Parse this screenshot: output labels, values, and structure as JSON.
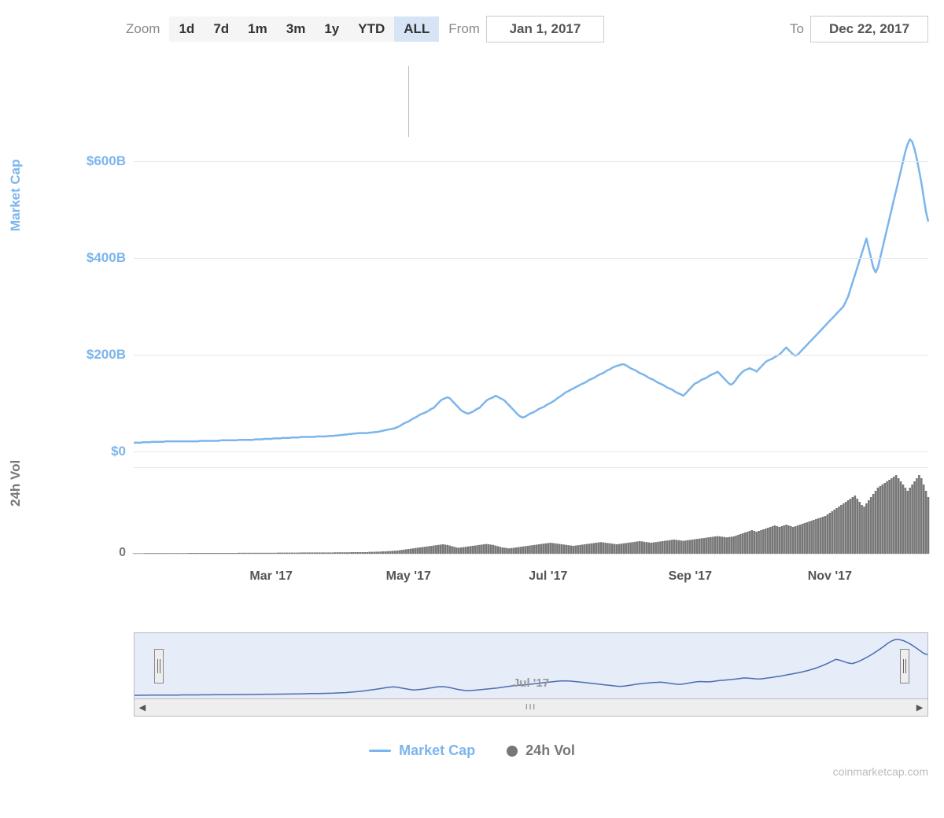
{
  "toolbar": {
    "zoom_label": "Zoom",
    "buttons": [
      "1d",
      "7d",
      "1m",
      "3m",
      "1y",
      "YTD",
      "ALL"
    ],
    "selected_index": 6,
    "from_label": "From",
    "to_label": "To",
    "from_date": "Jan 1, 2017",
    "to_date": "Dec 22, 2017"
  },
  "chart": {
    "type": "line+bar",
    "colors": {
      "market_cap_line": "#7cb5ec",
      "volume_bar": "#777777",
      "gridline": "#e6e6e6",
      "background": "#ffffff",
      "navigator_bg": "#e6ecf8",
      "navigator_line": "#4a6db0"
    },
    "y_axis_mc": {
      "title": "Market Cap",
      "title_color": "#7cb5ec",
      "ticks": [
        0,
        200,
        400,
        600
      ],
      "tick_labels": [
        "$0",
        "$200B",
        "$400B",
        "$600B"
      ],
      "ylim": [
        0,
        650
      ],
      "fontsize": 17
    },
    "y_axis_vol": {
      "title": "24h Vol",
      "title_color": "#777777",
      "ticks": [
        0
      ],
      "tick_labels": [
        "0"
      ],
      "ylim": [
        0,
        55
      ],
      "fontsize": 16
    },
    "x_axis": {
      "ticks": [
        60,
        120,
        181,
        243,
        304
      ],
      "tick_labels": [
        "Mar '17",
        "May '17",
        "Jul '17",
        "Sep '17",
        "Nov '17"
      ],
      "fontsize": 16
    },
    "crosshair_x": 120,
    "market_cap_series": [
      18,
      18,
      18,
      18,
      19,
      19,
      19,
      19,
      20,
      20,
      20,
      20,
      20,
      20,
      21,
      21,
      21,
      21,
      21,
      21,
      21,
      21,
      21,
      21,
      21,
      21,
      21,
      21,
      21,
      22,
      22,
      22,
      22,
      22,
      22,
      22,
      22,
      22,
      23,
      23,
      23,
      23,
      23,
      23,
      23,
      23,
      24,
      24,
      24,
      24,
      24,
      24,
      24,
      25,
      25,
      25,
      25,
      26,
      26,
      26,
      26,
      27,
      27,
      27,
      27,
      28,
      28,
      28,
      28,
      29,
      29,
      29,
      29,
      30,
      30,
      30,
      30,
      30,
      30,
      30,
      31,
      31,
      31,
      31,
      31,
      32,
      32,
      32,
      33,
      33,
      34,
      34,
      35,
      35,
      36,
      36,
      37,
      37,
      38,
      38,
      38,
      38,
      38,
      39,
      39,
      40,
      40,
      41,
      42,
      43,
      44,
      45,
      46,
      47,
      48,
      50,
      52,
      55,
      58,
      60,
      62,
      65,
      68,
      70,
      73,
      76,
      78,
      80,
      82,
      85,
      88,
      90,
      95,
      100,
      105,
      108,
      110,
      112,
      110,
      105,
      100,
      95,
      90,
      85,
      82,
      80,
      78,
      80,
      82,
      85,
      88,
      90,
      95,
      100,
      105,
      108,
      110,
      112,
      115,
      113,
      110,
      108,
      105,
      100,
      95,
      90,
      85,
      80,
      75,
      72,
      70,
      72,
      75,
      78,
      80,
      82,
      85,
      88,
      90,
      92,
      95,
      98,
      100,
      103,
      106,
      110,
      113,
      116,
      120,
      123,
      125,
      128,
      130,
      133,
      135,
      138,
      140,
      142,
      145,
      148,
      150,
      152,
      155,
      158,
      160,
      162,
      165,
      168,
      170,
      173,
      175,
      177,
      178,
      180,
      180,
      178,
      175,
      172,
      170,
      168,
      165,
      162,
      160,
      158,
      155,
      152,
      150,
      148,
      145,
      142,
      140,
      138,
      135,
      132,
      130,
      128,
      125,
      122,
      120,
      118,
      115,
      120,
      125,
      130,
      135,
      140,
      142,
      145,
      148,
      150,
      152,
      155,
      158,
      160,
      162,
      165,
      160,
      155,
      150,
      145,
      140,
      138,
      142,
      148,
      155,
      160,
      165,
      168,
      170,
      172,
      170,
      168,
      165,
      170,
      175,
      180,
      185,
      188,
      190,
      192,
      195,
      198,
      200,
      205,
      210,
      215,
      210,
      205,
      200,
      198,
      200,
      205,
      210,
      215,
      220,
      225,
      230,
      235,
      240,
      245,
      250,
      255,
      260,
      265,
      270,
      275,
      280,
      285,
      290,
      295,
      300,
      310,
      320,
      335,
      350,
      365,
      380,
      395,
      410,
      425,
      440,
      420,
      400,
      380,
      370,
      380,
      400,
      420,
      440,
      460,
      480,
      500,
      520,
      540,
      560,
      580,
      600,
      620,
      635,
      645,
      640,
      625,
      605,
      580,
      555,
      525,
      495,
      475
    ],
    "volume_series": [
      0.3,
      0.3,
      0.3,
      0.3,
      0.3,
      0.4,
      0.4,
      0.4,
      0.4,
      0.4,
      0.4,
      0.4,
      0.4,
      0.4,
      0.4,
      0.4,
      0.4,
      0.4,
      0.4,
      0.4,
      0.4,
      0.4,
      0.4,
      0.4,
      0.5,
      0.5,
      0.5,
      0.5,
      0.5,
      0.5,
      0.5,
      0.5,
      0.5,
      0.5,
      0.5,
      0.5,
      0.5,
      0.5,
      0.5,
      0.5,
      0.5,
      0.5,
      0.5,
      0.5,
      0.5,
      0.5,
      0.6,
      0.6,
      0.6,
      0.6,
      0.6,
      0.6,
      0.6,
      0.6,
      0.6,
      0.6,
      0.6,
      0.6,
      0.6,
      0.6,
      0.6,
      0.6,
      0.6,
      0.7,
      0.7,
      0.7,
      0.7,
      0.7,
      0.7,
      0.7,
      0.7,
      0.7,
      0.7,
      0.8,
      0.8,
      0.8,
      0.8,
      0.8,
      0.8,
      0.8,
      0.8,
      0.8,
      0.8,
      0.8,
      0.8,
      0.8,
      0.8,
      0.8,
      0.9,
      0.9,
      0.9,
      0.9,
      0.9,
      0.9,
      0.9,
      1,
      1,
      1,
      1,
      1,
      1,
      1,
      1,
      1.2,
      1.2,
      1.2,
      1.3,
      1.3,
      1.4,
      1.5,
      1.5,
      1.6,
      1.7,
      1.8,
      1.9,
      2,
      2.2,
      2.4,
      2.6,
      2.8,
      3,
      3.2,
      3.4,
      3.6,
      3.8,
      4,
      4.2,
      4.4,
      4.6,
      4.8,
      5,
      5.2,
      5.4,
      5.6,
      5.8,
      6,
      5.8,
      5.6,
      5.2,
      4.8,
      4.4,
      4,
      3.8,
      4,
      4.2,
      4.4,
      4.6,
      4.8,
      5,
      5.2,
      5.4,
      5.6,
      5.8,
      6,
      6.2,
      6,
      5.8,
      5.6,
      5.2,
      4.8,
      4.4,
      4,
      3.8,
      3.6,
      3.4,
      3.6,
      3.8,
      4,
      4.2,
      4.4,
      4.6,
      4.8,
      5,
      5.2,
      5.4,
      5.6,
      5.8,
      6,
      6.2,
      6.4,
      6.6,
      6.8,
      7,
      6.8,
      6.6,
      6.4,
      6.2,
      6,
      5.8,
      5.6,
      5.4,
      5.2,
      5,
      5.2,
      5.4,
      5.6,
      5.8,
      6,
      6.2,
      6.4,
      6.6,
      6.8,
      7,
      7.2,
      7.4,
      7.2,
      7,
      6.8,
      6.6,
      6.4,
      6.2,
      6,
      6.2,
      6.4,
      6.6,
      6.8,
      7,
      7.2,
      7.4,
      7.6,
      7.8,
      8,
      7.8,
      7.6,
      7.4,
      7.2,
      7,
      7.2,
      7.4,
      7.6,
      7.8,
      8,
      8.2,
      8.4,
      8.6,
      8.8,
      9,
      8.8,
      8.6,
      8.4,
      8.2,
      8.4,
      8.6,
      8.8,
      9,
      9.2,
      9.4,
      9.6,
      9.8,
      10,
      10.2,
      10.4,
      10.6,
      10.8,
      11,
      11.2,
      11,
      10.8,
      10.6,
      10.4,
      10.6,
      10.8,
      11,
      11.5,
      12,
      12.5,
      13,
      13.5,
      14,
      14.5,
      15,
      14.5,
      14,
      14.5,
      15,
      15.5,
      16,
      16.5,
      17,
      17.5,
      18,
      17.5,
      17,
      17.5,
      18,
      18.5,
      18,
      17.5,
      17,
      17.5,
      18,
      18.5,
      19,
      19.5,
      20,
      20.5,
      21,
      21.5,
      22,
      22.5,
      23,
      23.5,
      24,
      25,
      26,
      27,
      28,
      29,
      30,
      31,
      32,
      33,
      34,
      35,
      36,
      37,
      35,
      33,
      31,
      30,
      32,
      34,
      36,
      38,
      40,
      42,
      43,
      44,
      45,
      46,
      47,
      48,
      49,
      50,
      48,
      46,
      44,
      42,
      40,
      42,
      44,
      46,
      48,
      50,
      48,
      44,
      40,
      36
    ],
    "line_width": 2.5
  },
  "navigator": {
    "handle_left_pct": 2.5,
    "handle_right_pct": 96.5,
    "tick_label": "Jul '17",
    "tick_pct": 50,
    "series": [
      18,
      18,
      19,
      19,
      20,
      20,
      20,
      21,
      21,
      21,
      21,
      21,
      22,
      22,
      22,
      22,
      22,
      23,
      23,
      23,
      24,
      24,
      24,
      25,
      25,
      26,
      26,
      27,
      27,
      28,
      28,
      29,
      29,
      30,
      30,
      30,
      31,
      31,
      32,
      32,
      33,
      34,
      35,
      36,
      37,
      38,
      38,
      39,
      40,
      41,
      42,
      44,
      46,
      48,
      52,
      56,
      60,
      65,
      70,
      76,
      82,
      88,
      95,
      102,
      108,
      112,
      108,
      100,
      92,
      84,
      78,
      80,
      85,
      90,
      98,
      105,
      112,
      115,
      112,
      105,
      95,
      85,
      78,
      72,
      70,
      74,
      78,
      82,
      86,
      90,
      95,
      100,
      106,
      112,
      118,
      124,
      128,
      132,
      136,
      140,
      145,
      150,
      155,
      160,
      165,
      170,
      175,
      178,
      180,
      178,
      174,
      170,
      165,
      160,
      155,
      150,
      145,
      140,
      135,
      130,
      125,
      120,
      118,
      122,
      128,
      135,
      142,
      148,
      152,
      156,
      160,
      162,
      165,
      160,
      154,
      148,
      142,
      140,
      146,
      154,
      162,
      168,
      172,
      170,
      168,
      172,
      178,
      184,
      188,
      192,
      196,
      200,
      206,
      212,
      210,
      206,
      202,
      200,
      206,
      212,
      218,
      225,
      232,
      240,
      248,
      256,
      265,
      274,
      284,
      295,
      308,
      322,
      338,
      356,
      376,
      398,
      420,
      410,
      395,
      380,
      372,
      384,
      402,
      424,
      448,
      474,
      502,
      532,
      564,
      598,
      625,
      642,
      640,
      628,
      608,
      582,
      552,
      520,
      488,
      470
    ]
  },
  "legend": {
    "market_cap": "Market Cap",
    "volume": "24h Vol"
  },
  "attribution": "coinmarketcap.com"
}
